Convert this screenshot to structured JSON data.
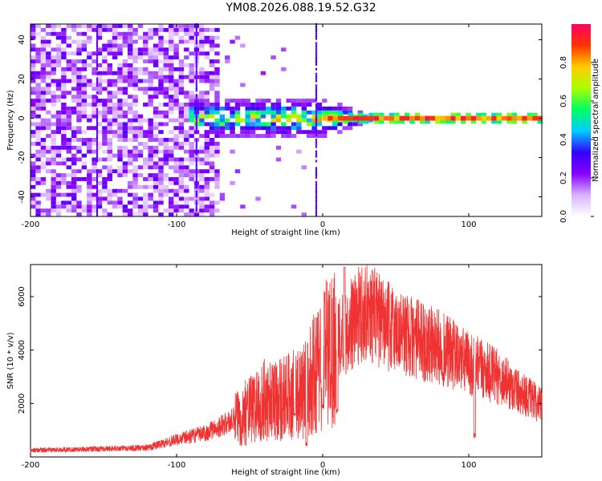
{
  "title": "YM08.2026.088.19.52.G32",
  "chart_data": [
    {
      "type": "heatmap",
      "xlabel": "Height of straight line (km)",
      "ylabel": "Frequency (Hz)",
      "xlim": [
        -200,
        150
      ],
      "ylim": [
        -50,
        48
      ],
      "xticks": [
        -200,
        -100,
        0,
        100
      ],
      "yticks": [
        -40,
        -20,
        0,
        20,
        40
      ],
      "colorbar": {
        "label": "Normalized spectral amplitude",
        "range": [
          0,
          1
        ],
        "ticks": [
          "0.0",
          "0.2",
          "0.4",
          "0.6",
          "0.8"
        ],
        "colors": [
          "#ffffff",
          "#d9b3ff",
          "#8800ff",
          "#3300ff",
          "#00ccff",
          "#00ff66",
          "#aaff00",
          "#ffcc00",
          "#ff3300",
          "#ff0066"
        ]
      },
      "features": [
        {
          "name": "broadband noise",
          "x_range": [
            -200,
            -72
          ],
          "freq_range": [
            -50,
            48
          ],
          "amplitude": 0.2
        },
        {
          "name": "sparse noise",
          "x_range": [
            -72,
            0
          ],
          "freq_range": [
            -50,
            48
          ],
          "amplitude": 0.05
        },
        {
          "name": "vertical streaks",
          "x": [
            -155,
            -87,
            -5
          ]
        },
        {
          "name": "spread signal",
          "x_range": [
            -90,
            35
          ],
          "freq_range": [
            -12,
            12
          ],
          "amplitude": 0.45
        },
        {
          "name": "carrier line",
          "x_range": [
            0,
            150
          ],
          "freq": 0,
          "amplitude": 0.9
        }
      ]
    },
    {
      "type": "line",
      "xlabel": "Height of straight line (km)",
      "ylabel": "SNR (10 * v/v)",
      "xlim": [
        -200,
        150
      ],
      "ylim": [
        0,
        7200
      ],
      "xticks": [
        -200,
        -100,
        0,
        100
      ],
      "yticks": [
        2000,
        4000,
        6000
      ],
      "color": "#ef3333",
      "envelope": {
        "x": [
          -200,
          -150,
          -120,
          -100,
          -80,
          -60,
          -40,
          -20,
          -10,
          0,
          10,
          20,
          30,
          40,
          60,
          80,
          100,
          120,
          150
        ],
        "y": [
          250,
          300,
          350,
          650,
          900,
          1400,
          2100,
          2300,
          2600,
          3800,
          4300,
          5000,
          5600,
          5000,
          4500,
          4100,
          3500,
          3000,
          1900
        ]
      },
      "dips": [
        {
          "x": -19,
          "y": 1500
        },
        {
          "x": -11,
          "y": 400
        },
        {
          "x": 0,
          "y": 1800
        },
        {
          "x": 10,
          "y": 1600
        },
        {
          "x": 104,
          "y": 700
        }
      ],
      "peak": {
        "x": 15,
        "y": 7100
      }
    }
  ]
}
